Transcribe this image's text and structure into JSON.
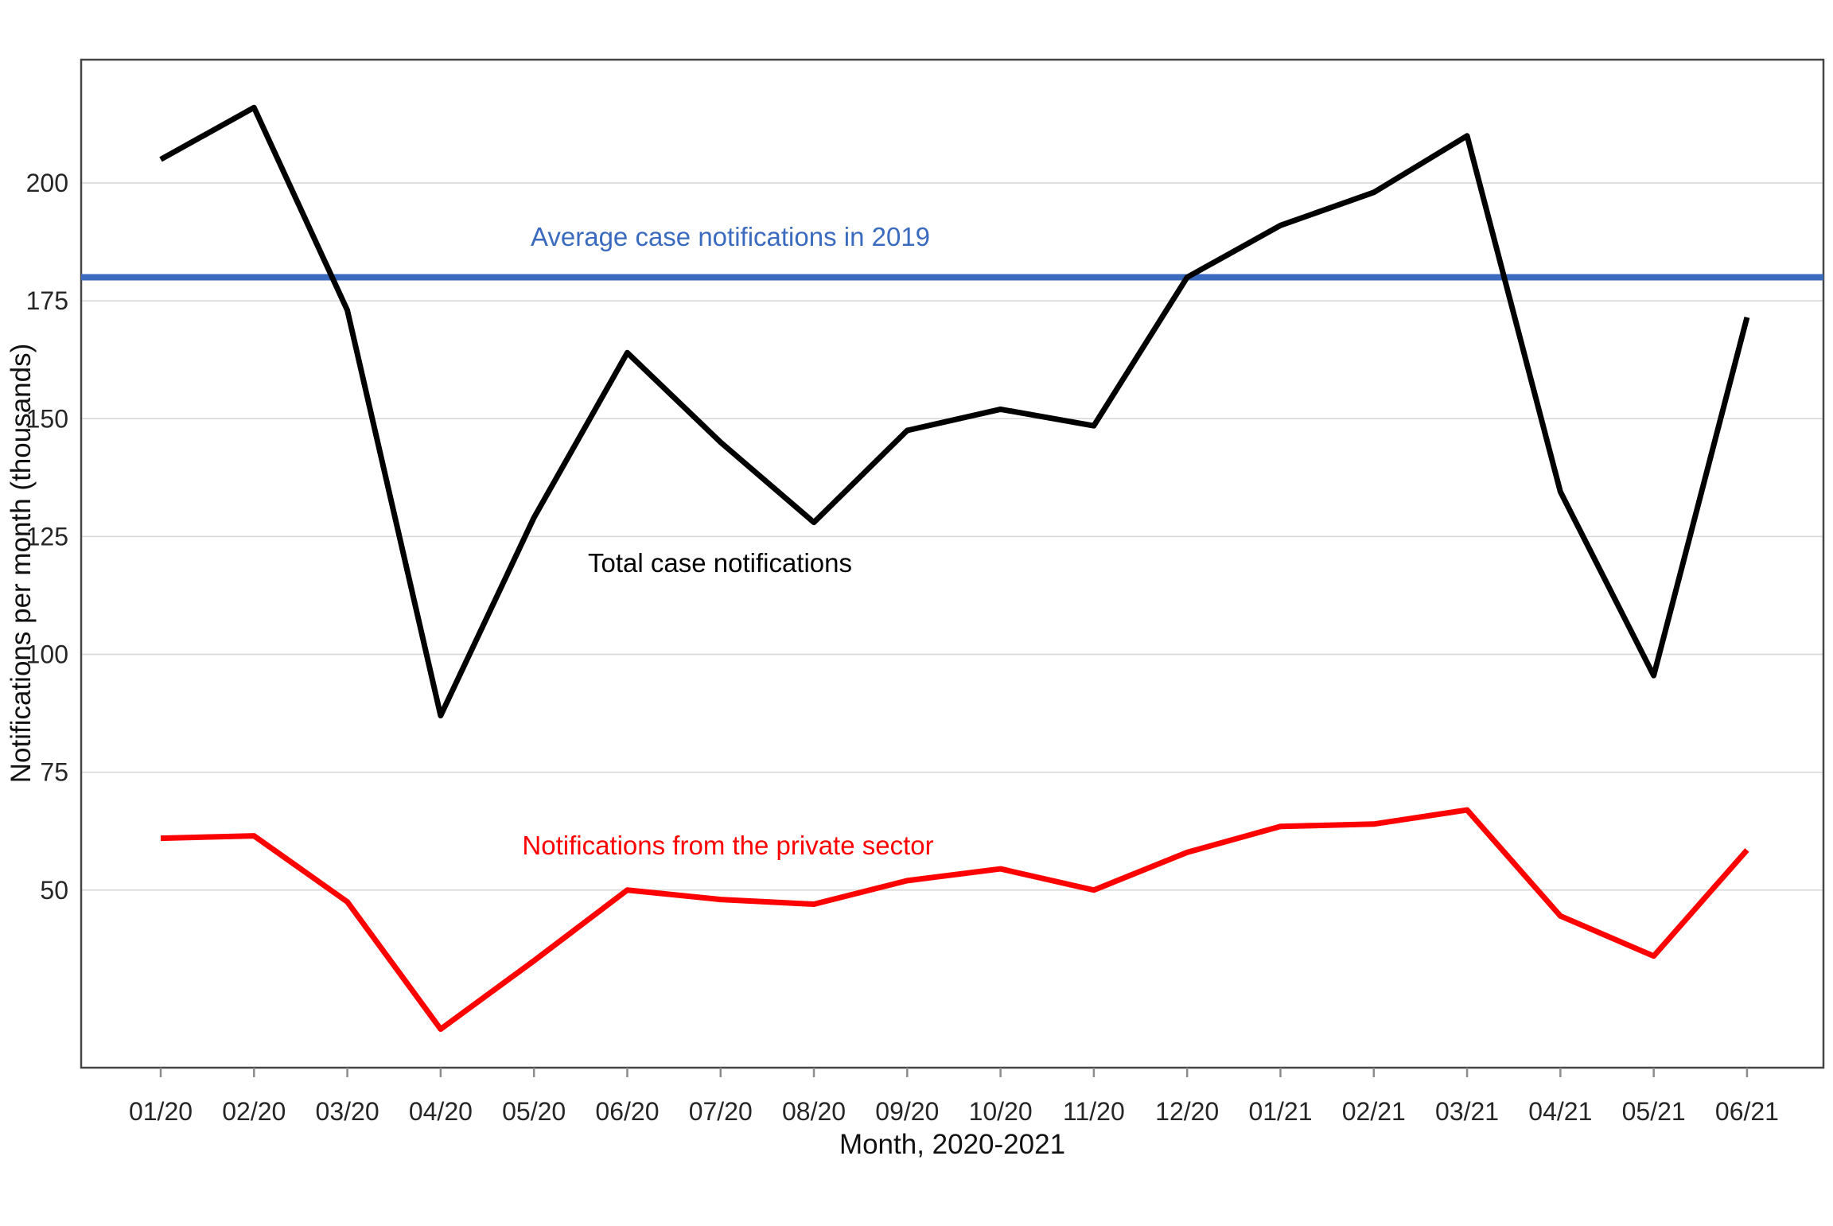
{
  "chart_data": {
    "type": "line",
    "title": "",
    "xlabel": "Month, 2020-2021",
    "ylabel": "Notifications per month (thousands)",
    "categories": [
      "01/20",
      "02/20",
      "03/20",
      "04/20",
      "05/20",
      "06/20",
      "07/20",
      "08/20",
      "09/20",
      "10/20",
      "11/20",
      "12/20",
      "01/21",
      "02/21",
      "03/21",
      "04/21",
      "05/21",
      "06/21"
    ],
    "y_ticks": [
      200,
      175,
      150,
      125,
      100,
      75,
      50
    ],
    "ylim": [
      12,
      226
    ],
    "grid": "horizontal-only",
    "legend_position": "inline-annotations",
    "series": [
      {
        "name": "Total case notifications",
        "color": "#000000",
        "values": [
          205,
          216,
          173,
          87,
          129,
          164,
          145,
          128,
          147.5,
          152,
          148.5,
          180,
          191,
          198,
          210,
          134.5,
          95.5,
          171.5
        ]
      },
      {
        "name": "Notifications from the private sector",
        "color": "#ff0000",
        "values": [
          61,
          61.5,
          47.5,
          20.5,
          35,
          50,
          48,
          47,
          52,
          54.5,
          50,
          58,
          63.5,
          64,
          67,
          44.5,
          36,
          58.5
        ]
      }
    ],
    "reference_line": {
      "label": "Average case notifications in 2019",
      "value": 180,
      "color": "#3a6bbe"
    }
  }
}
